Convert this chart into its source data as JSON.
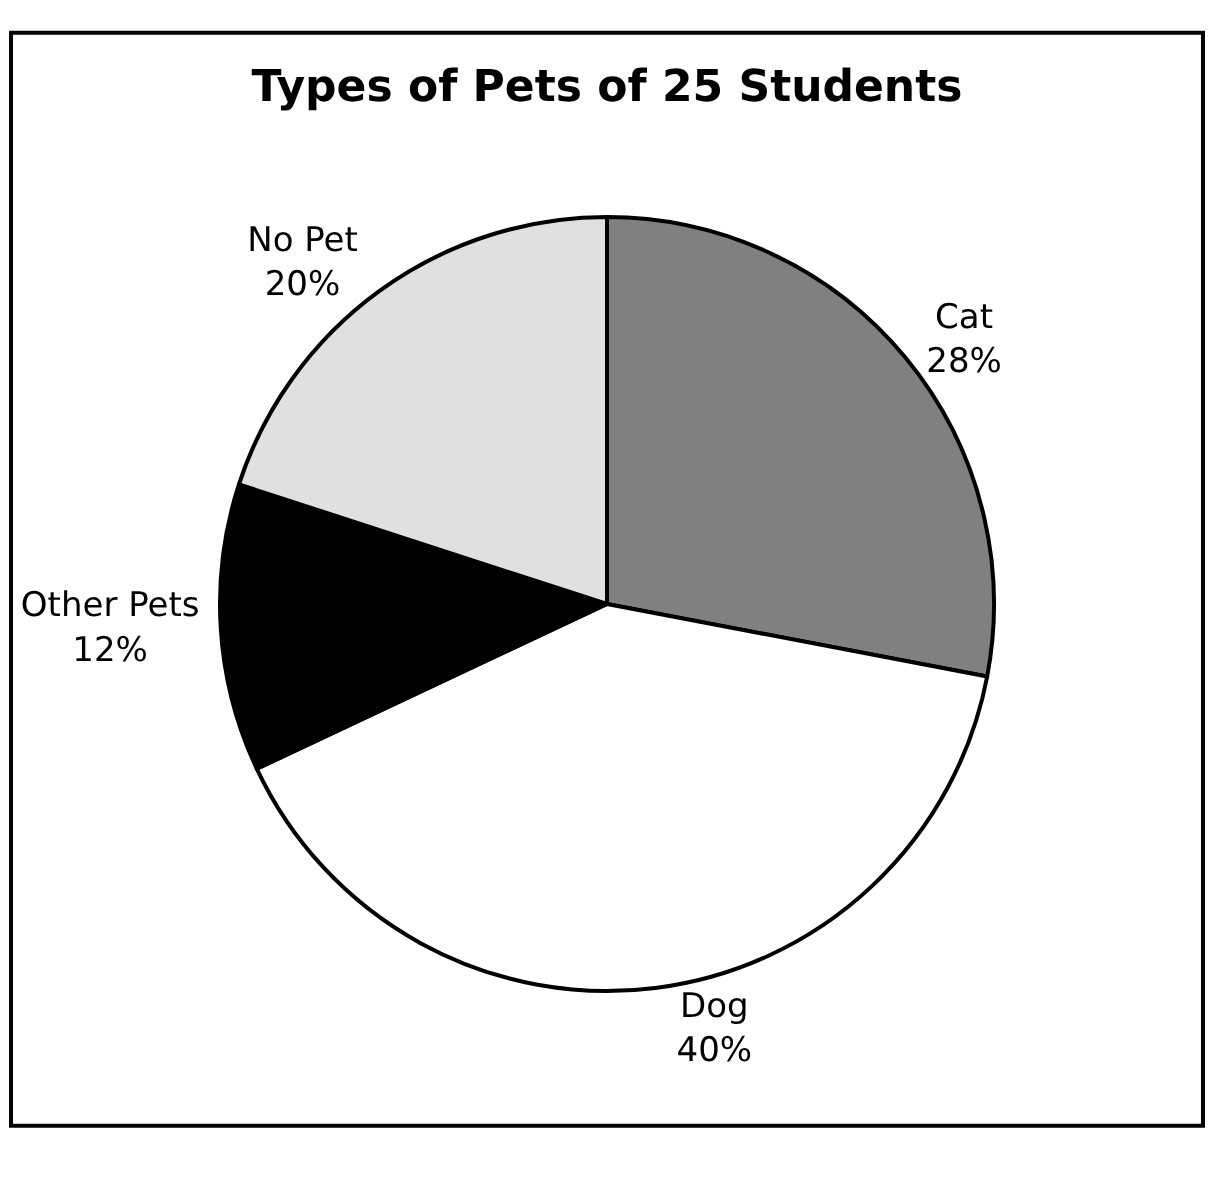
{
  "chart_data": {
    "type": "pie",
    "title": "Types of Pets of 25 Students",
    "categories": [
      "Cat",
      "Dog",
      "Other Pets",
      "No Pet"
    ],
    "values": [
      28,
      40,
      12,
      20
    ],
    "value_labels": [
      "28%",
      "40%",
      "12%",
      "20%"
    ],
    "colors": [
      "#808080",
      "#ffffff",
      "#000000",
      "#e0e0e0"
    ],
    "legend": false
  }
}
